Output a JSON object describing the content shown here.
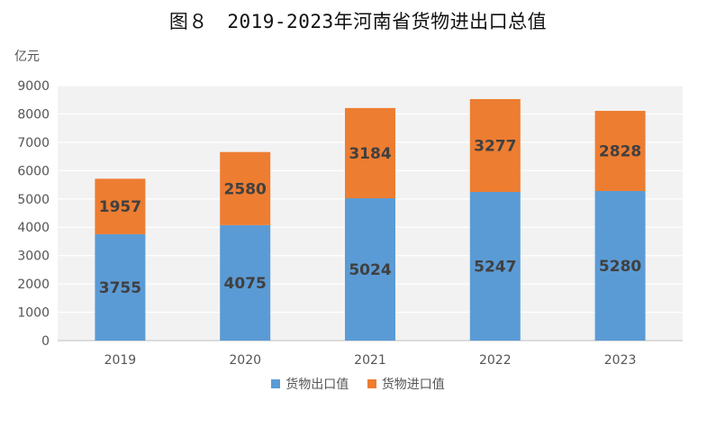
{
  "chart_data": {
    "type": "bar",
    "stacked": true,
    "title": "图８　2019-2023年河南省货物进出口总值",
    "ylabel": "亿元",
    "categories": [
      "2019",
      "2020",
      "2021",
      "2022",
      "2023"
    ],
    "series": [
      {
        "name": "货物出口值",
        "values": [
          3755,
          4075,
          5024,
          5247,
          5280
        ],
        "color": "#5b9bd5"
      },
      {
        "name": "货物进口值",
        "values": [
          1957,
          2580,
          3184,
          3277,
          2828
        ],
        "color": "#ed7d31"
      }
    ],
    "ylim": [
      0,
      9000
    ],
    "yticks": [
      "0",
      "1000",
      "2000",
      "3000",
      "4000",
      "5000",
      "6000",
      "7000",
      "8000",
      "9000"
    ],
    "grid": true,
    "legend_position": "bottom",
    "plot_background": "#f2f2f2"
  }
}
